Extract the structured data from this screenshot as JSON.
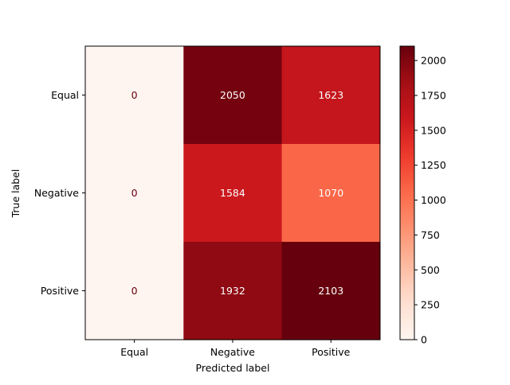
{
  "chart_data": {
    "type": "heatmap",
    "x_categories": [
      "Equal",
      "Negative",
      "Positive"
    ],
    "y_categories": [
      "Equal",
      "Negative",
      "Positive"
    ],
    "values": [
      [
        0,
        2050,
        1623
      ],
      [
        0,
        1584,
        1070
      ],
      [
        0,
        1932,
        2103
      ]
    ],
    "xlabel": "Predicted label",
    "ylabel": "True label",
    "colormap": "Reds",
    "color_range": [
      0,
      2103
    ],
    "colorbar_ticks": [
      0,
      250,
      500,
      750,
      1000,
      1250,
      1500,
      1750,
      2000
    ],
    "colorbar_tick_labels": [
      "0",
      "250",
      "500",
      "750",
      "1000",
      "1250",
      "1500",
      "1750",
      "2000"
    ],
    "grid": false,
    "colorbar": "right"
  }
}
